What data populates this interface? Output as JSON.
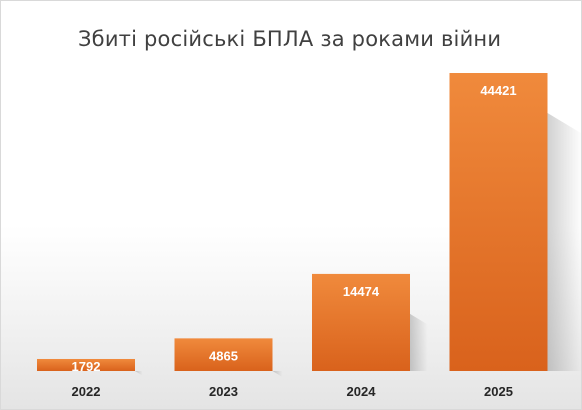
{
  "chart_data": {
    "type": "bar",
    "title": "Збиті російські БПЛА за роками війни",
    "xlabel": "",
    "ylabel": "",
    "categories": [
      "2022",
      "2023",
      "2024",
      "2025"
    ],
    "values": [
      1792,
      4865,
      14474,
      44421
    ],
    "data_labels": [
      "1792",
      "4865",
      "14474",
      "44421"
    ],
    "ylim": [
      0,
      48000
    ],
    "grid": false,
    "legend": "none",
    "colors": {
      "bar": "#E8762E",
      "bar_light": "#F08A3C",
      "bar_dark": "#D9621C",
      "label": "#FFFFFF",
      "title": "#404040"
    }
  }
}
